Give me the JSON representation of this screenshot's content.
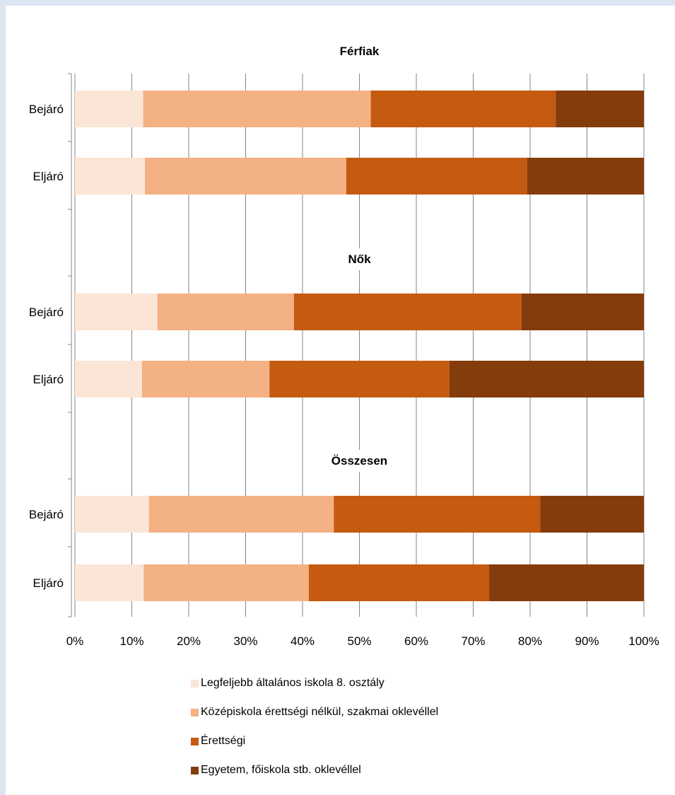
{
  "chart_data": {
    "type": "bar",
    "orientation": "horizontal",
    "stacked": "percent",
    "groups": [
      {
        "title": "Férfiak",
        "rows": [
          {
            "label": "Bejáró",
            "values": [
              12,
              40,
              32.5,
              15.5
            ]
          },
          {
            "label": "Eljáró",
            "values": [
              12.3,
              35.4,
              31.8,
              20.5
            ]
          }
        ]
      },
      {
        "title": "Nők",
        "rows": [
          {
            "label": "Bejáró",
            "values": [
              14.5,
              24,
              40,
              21.5
            ]
          },
          {
            "label": "Eljáró",
            "values": [
              11.8,
              22.4,
              31.6,
              34.2
            ]
          }
        ]
      },
      {
        "title": "Összesen",
        "rows": [
          {
            "label": "Bejáró",
            "values": [
              13,
              32.5,
              36.3,
              18.2
            ]
          },
          {
            "label": "Eljáró",
            "values": [
              12.1,
              29,
              31.7,
              27.2
            ]
          }
        ]
      }
    ],
    "series": [
      {
        "name": "Legfeljebb általános iskola 8. osztály",
        "color": "#fbe5d6"
      },
      {
        "name": "Középiskola érettségi nélkül, szakmai oklevéllel",
        "color": "#f4b183"
      },
      {
        "name": "Érettségi",
        "color": "#c55a11"
      },
      {
        "name": "Egyetem, főiskola stb. oklevéllel",
        "color": "#843c0c"
      }
    ],
    "x_ticks": [
      "0%",
      "10%",
      "20%",
      "30%",
      "40%",
      "50%",
      "60%",
      "70%",
      "80%",
      "90%",
      "100%"
    ],
    "xlim": [
      0,
      100
    ],
    "grid": true,
    "legend_position": "bottom"
  }
}
